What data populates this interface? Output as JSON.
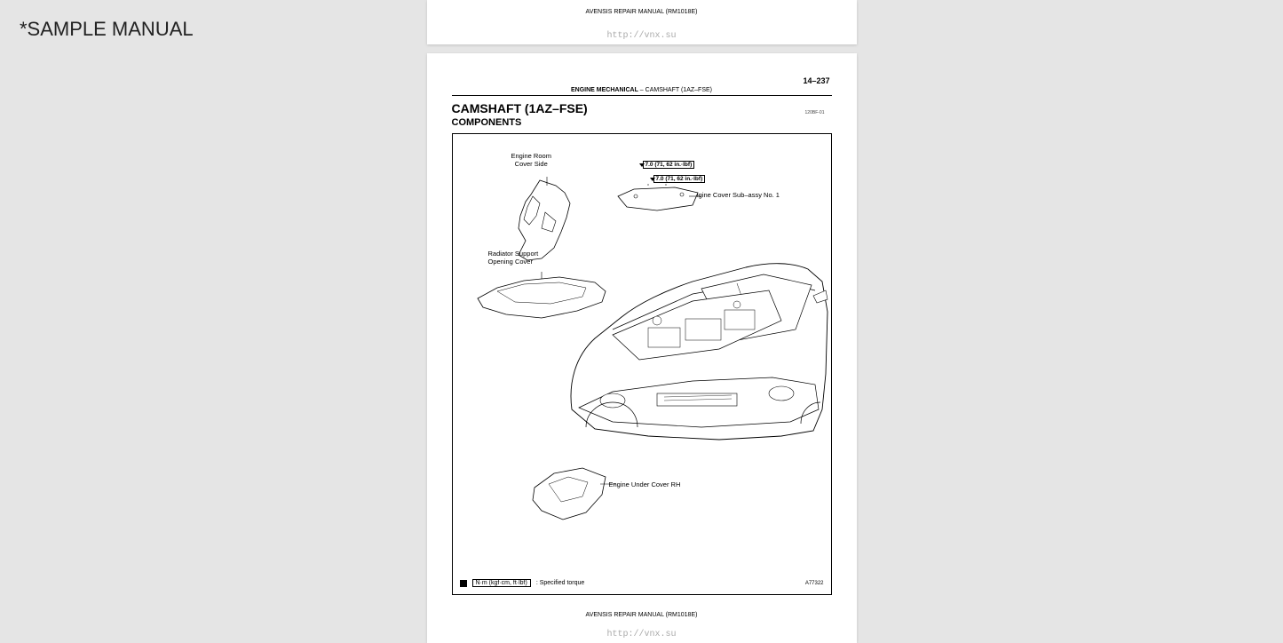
{
  "watermark": "*SAMPLE MANUAL",
  "topPage": {
    "manualCode": "AVENSIS REPAIR MANUAL   (RM1018E)",
    "url": "http://vnx.su"
  },
  "mainPage": {
    "pageNumber": "14–237",
    "headerSection": "ENGINE MECHANICAL",
    "headerDash": "   –   ",
    "headerSub": "CAMSHAFT (1AZ–FSE)",
    "title": "CAMSHAFT (1AZ–FSE)",
    "subtitle": "COMPONENTS",
    "smallCode": "120BF-01",
    "labels": {
      "engineRoomCoverSide": "Engine Room\nCover Side",
      "radiatorSupport": "Radiator Support\nOpening Cover",
      "torque1": "7.0 (71, 62 in.·lbf)",
      "torque2": "7.0 (71, 62 in.·lbf)",
      "engineCoverSub": "Engine Cover Sub–assy No. 1",
      "engineUnderCover": "Engine Under Cover RH"
    },
    "legend": {
      "box": "N·m (kgf·cm, ft·lbf)",
      "text": ": Specified torque",
      "ref": "A77322"
    },
    "footerManual": "AVENSIS REPAIR MANUAL   (RM1018E)",
    "footerUrl": "http://vnx.su"
  },
  "colors": {
    "background": "#e5e5e5",
    "paper": "#ffffff",
    "line": "#000000",
    "faint": "#aaaaaa"
  }
}
